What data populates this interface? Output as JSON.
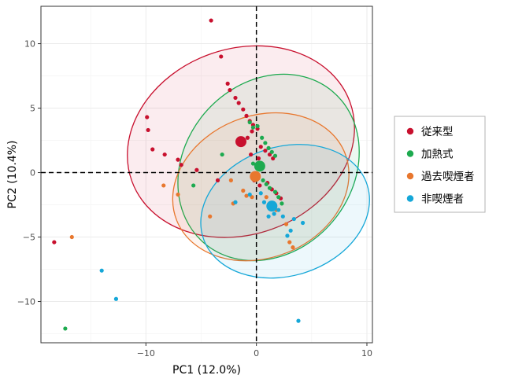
{
  "chart_data": {
    "type": "scatter",
    "xlabel": "PC1 (12.0%)",
    "ylabel": "PC2 (10.4%)",
    "xlim": [
      -19.5,
      10.5
    ],
    "ylim": [
      -13.2,
      12.9
    ],
    "xticks": [
      -10,
      0,
      10
    ],
    "xtick_labels": [
      "−10",
      "0",
      "10"
    ],
    "yticks": [
      10,
      5,
      0,
      -5,
      -10
    ],
    "ytick_labels": [
      "10",
      "5",
      "0",
      "−5",
      "−10"
    ],
    "grid": true,
    "reference_lines": {
      "x": 0,
      "y": 0,
      "style": "dashed"
    },
    "legend": {
      "placement": "right"
    },
    "series": [
      {
        "name": "従来型",
        "color": "#C8102E",
        "centroid": [
          -1.4,
          2.4
        ],
        "ellipse": {
          "cx": -1.4,
          "cy": 2.4,
          "rx": 10.5,
          "ry": 7.2,
          "angle": -20
        },
        "points": [
          [
            -4.1,
            11.8
          ],
          [
            -3.2,
            9.0
          ],
          [
            -2.6,
            6.9
          ],
          [
            -2.4,
            6.4
          ],
          [
            -1.9,
            5.8
          ],
          [
            -1.6,
            5.4
          ],
          [
            -1.2,
            4.9
          ],
          [
            -0.9,
            4.4
          ],
          [
            -0.6,
            4.0
          ],
          [
            -0.3,
            3.7
          ],
          [
            0.1,
            3.4
          ],
          [
            -9.9,
            4.3
          ],
          [
            -9.8,
            3.3
          ],
          [
            -9.4,
            1.8
          ],
          [
            -8.3,
            1.4
          ],
          [
            -7.1,
            1.0
          ],
          [
            -6.8,
            0.6
          ],
          [
            -5.4,
            0.2
          ],
          [
            -3.5,
            -0.6
          ],
          [
            -18.3,
            -5.4
          ],
          [
            -0.8,
            2.7
          ],
          [
            -0.4,
            3.2
          ],
          [
            0.4,
            2.0
          ],
          [
            0.8,
            1.7
          ],
          [
            1.2,
            1.4
          ],
          [
            1.5,
            1.1
          ],
          [
            -0.2,
            -0.6
          ],
          [
            0.3,
            -1.0
          ],
          [
            1.0,
            -0.8
          ],
          [
            1.4,
            -1.3
          ],
          [
            1.8,
            -1.6
          ],
          [
            2.2,
            -2.0
          ],
          [
            -0.5,
            1.4
          ],
          [
            0.2,
            1.1
          ]
        ]
      },
      {
        "name": "加熱式",
        "color": "#1DAA4F",
        "centroid": [
          0.3,
          0.5
        ],
        "ellipse": {
          "cx": 1.1,
          "cy": 0.4,
          "rx": 9.0,
          "ry": 6.5,
          "angle": -50
        },
        "points": [
          [
            -17.3,
            -12.1
          ],
          [
            -0.6,
            3.9
          ],
          [
            -0.3,
            3.5
          ],
          [
            0.1,
            3.6
          ],
          [
            0.5,
            2.7
          ],
          [
            0.8,
            2.3
          ],
          [
            1.1,
            1.9
          ],
          [
            1.4,
            1.6
          ],
          [
            1.7,
            1.3
          ],
          [
            0.6,
            -0.6
          ],
          [
            0.9,
            -0.9
          ],
          [
            1.2,
            -1.2
          ],
          [
            1.7,
            -1.5
          ],
          [
            2.0,
            -1.9
          ],
          [
            2.3,
            -2.4
          ],
          [
            -5.7,
            -1.0
          ],
          [
            -3.1,
            1.4
          ],
          [
            -0.3,
            0.7
          ]
        ]
      },
      {
        "name": "過去喫煙者",
        "color": "#E8772E",
        "centroid": [
          -0.1,
          -0.3
        ],
        "ellipse": {
          "cx": 0.4,
          "cy": -1.1,
          "rx": 8.2,
          "ry": 5.5,
          "angle": -22
        },
        "points": [
          [
            -16.7,
            -5.0
          ],
          [
            -8.4,
            -1.0
          ],
          [
            -7.1,
            -1.7
          ],
          [
            -4.2,
            -3.4
          ],
          [
            -2.3,
            -0.6
          ],
          [
            -1.2,
            -1.4
          ],
          [
            -0.9,
            -1.8
          ],
          [
            -0.4,
            -1.9
          ],
          [
            2.7,
            -4.0
          ],
          [
            3.0,
            -5.4
          ],
          [
            3.3,
            -5.8
          ],
          [
            0.9,
            -1.9
          ],
          [
            1.4,
            -2.5
          ],
          [
            1.8,
            -2.9
          ],
          [
            -2.1,
            -2.4
          ],
          [
            0.1,
            -0.1
          ]
        ]
      },
      {
        "name": "非喫煙者",
        "color": "#15A7D8",
        "centroid": [
          1.4,
          -2.6
        ],
        "ellipse": {
          "cx": 2.6,
          "cy": -3.0,
          "rx": 7.8,
          "ry": 5.0,
          "angle": -18
        },
        "points": [
          [
            -14.0,
            -7.6
          ],
          [
            -12.7,
            -9.8
          ],
          [
            3.8,
            -11.5
          ],
          [
            4.2,
            -3.9
          ],
          [
            3.4,
            -3.6
          ],
          [
            3.1,
            -4.5
          ],
          [
            2.8,
            -4.9
          ],
          [
            2.4,
            -3.4
          ],
          [
            2.0,
            -2.9
          ],
          [
            1.6,
            -3.2
          ],
          [
            1.1,
            -3.4
          ],
          [
            0.7,
            -2.3
          ],
          [
            0.4,
            -1.6
          ],
          [
            -0.6,
            -1.7
          ],
          [
            -1.9,
            -2.3
          ]
        ]
      }
    ]
  }
}
